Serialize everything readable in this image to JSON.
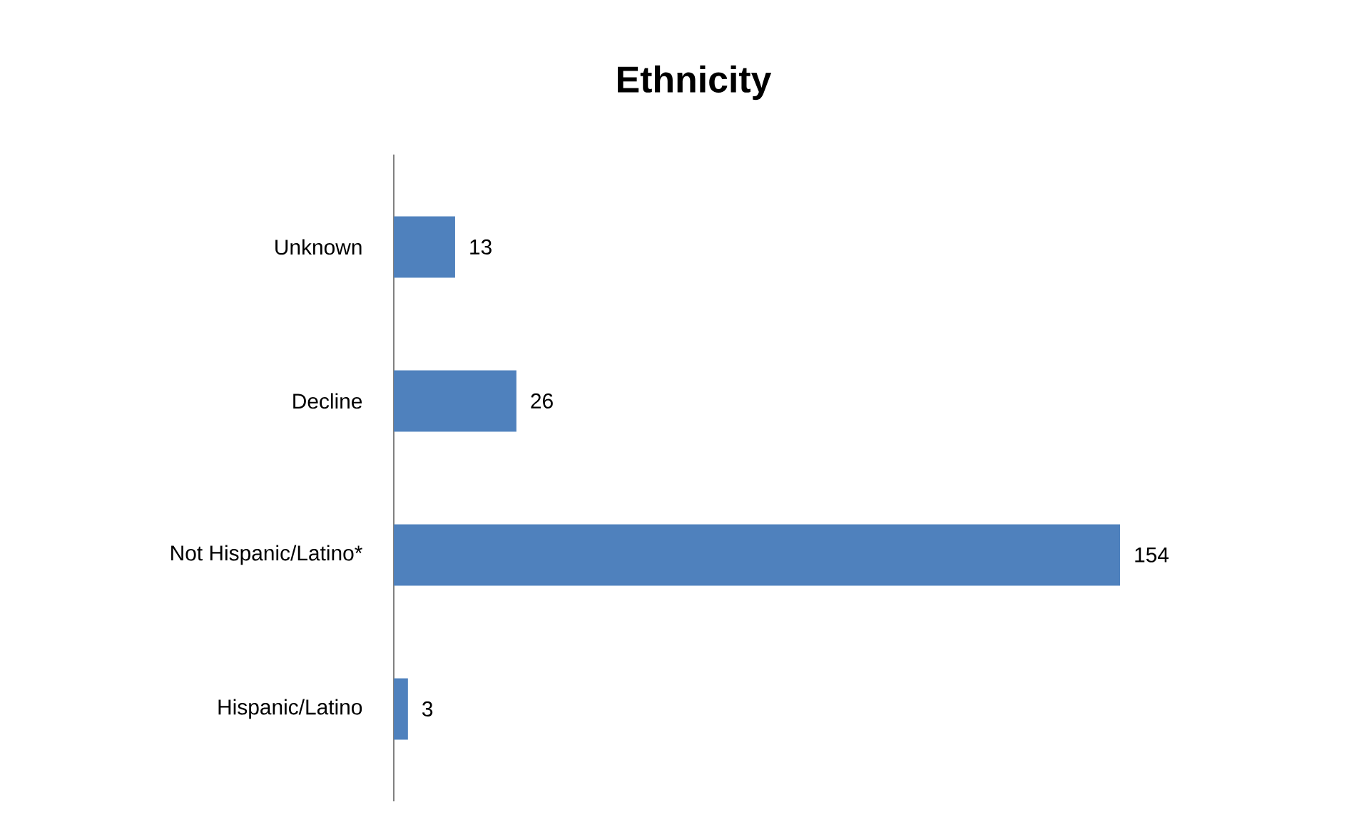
{
  "chart_data": {
    "type": "bar",
    "orientation": "horizontal",
    "title": "Ethnicity",
    "categories": [
      "Unknown",
      "Decline",
      "Not Hispanic/Latino*",
      "Hispanic/Latino"
    ],
    "values": [
      13,
      26,
      154,
      3
    ],
    "color": "#4f81bd",
    "data_labels": true
  }
}
